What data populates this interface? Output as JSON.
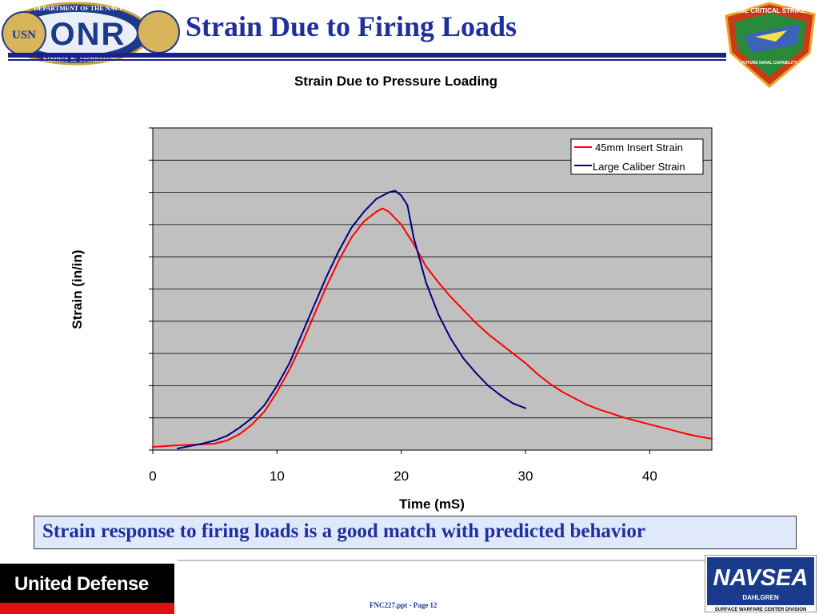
{
  "slide": {
    "title": "Strain Due to Firing Loads",
    "conclusion": "Strain response to firing loads is a good match with predicted behavior",
    "footer_page": "FNC227.ppt - Page 12"
  },
  "logos": {
    "onr": {
      "ring_top": "DEPARTMENT OF THE NAVY",
      "ring_bottom": "Science & Technology",
      "wordmark": "ONR",
      "seal_text": "USN",
      "icon": "onr-seal-icon"
    },
    "tcs": {
      "ring_text": "TIME CRITICAL STRIKE",
      "bottom_text": "FUTURE NAVAL CAPABILITY",
      "icon": "time-critical-strike-shield-icon"
    },
    "united_defense": {
      "text": "United Defense"
    },
    "navsea": {
      "wordmark": "NAVSEA",
      "sub": "DAHLGREN",
      "division": "SURFACE WARFARE CENTER DIVISION"
    }
  },
  "colors": {
    "title_blue": "#1f2f9e",
    "rule_navy": "#1a1f8a",
    "plot_bg": "#c0c0c0",
    "insert_red": "#ff0000",
    "caliber_navy": "#000080"
  },
  "chart_data": {
    "type": "line",
    "title": "Strain Due to Pressure Loading",
    "xlabel": "Time (mS)",
    "ylabel": "Strain (in/in)",
    "xlim": [
      0,
      45
    ],
    "ylim": [
      0,
      10
    ],
    "x_ticks": [
      0,
      10,
      20,
      30,
      40
    ],
    "y_tick_labels_shown": false,
    "grid": true,
    "legend": "top-right",
    "series": [
      {
        "name": "45mm Insert Strain",
        "color": "#ff0000",
        "x": [
          0,
          2,
          4,
          5,
          6,
          7,
          8,
          9,
          10,
          11,
          12,
          13,
          14,
          15,
          16,
          17,
          18,
          18.5,
          19,
          20,
          21,
          22,
          23,
          24,
          25,
          26,
          27,
          28,
          29,
          30,
          31,
          32,
          33,
          34,
          35,
          36,
          37,
          38,
          39,
          40,
          41,
          42,
          43,
          44,
          45
        ],
        "y": [
          0.1,
          0.15,
          0.18,
          0.2,
          0.3,
          0.5,
          0.8,
          1.2,
          1.8,
          2.5,
          3.3,
          4.2,
          5.1,
          5.9,
          6.6,
          7.1,
          7.4,
          7.5,
          7.4,
          7.0,
          6.4,
          5.7,
          5.2,
          4.75,
          4.35,
          3.95,
          3.6,
          3.3,
          3.0,
          2.7,
          2.35,
          2.05,
          1.8,
          1.6,
          1.4,
          1.25,
          1.13,
          1.0,
          0.9,
          0.8,
          0.7,
          0.6,
          0.5,
          0.42,
          0.35
        ]
      },
      {
        "name": "Large Caliber Strain",
        "color": "#000080",
        "x": [
          2,
          4,
          5,
          6,
          7,
          8,
          9,
          10,
          11,
          12,
          13,
          14,
          15,
          16,
          17,
          18,
          19,
          19.5,
          20,
          20.5,
          21,
          22,
          23,
          24,
          25,
          26,
          27,
          28,
          29,
          30
        ],
        "y": [
          0.05,
          0.2,
          0.3,
          0.45,
          0.7,
          1.0,
          1.4,
          2.0,
          2.7,
          3.6,
          4.5,
          5.4,
          6.2,
          6.9,
          7.4,
          7.8,
          8.0,
          8.05,
          7.9,
          7.6,
          6.6,
          5.2,
          4.2,
          3.45,
          2.85,
          2.4,
          2.0,
          1.7,
          1.45,
          1.3
        ]
      }
    ]
  }
}
